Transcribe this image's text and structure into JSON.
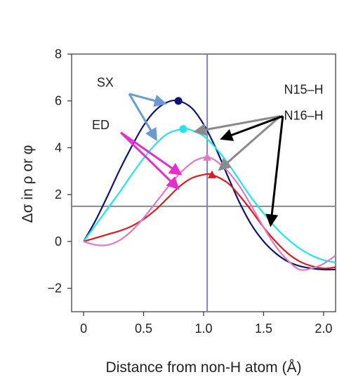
{
  "chart_data": {
    "type": "line",
    "xlabel": "Distance from non-H atom (Å)",
    "ylabel": "Δσ in ρ or φ",
    "xlim": [
      -0.1,
      2.1
    ],
    "ylim": [
      -3,
      8
    ],
    "x_ticks": [
      "0",
      "0.5",
      "1.0",
      "1.5",
      "2.0"
    ],
    "y_ticks": [
      "−2",
      "0",
      "2",
      "4",
      "6",
      "8"
    ],
    "x_tick_values": [
      0,
      0.5,
      1.0,
      1.5,
      2.0
    ],
    "y_tick_values": [
      -2,
      0,
      2,
      4,
      6,
      8
    ],
    "reference_lines": {
      "horizontal_y": 1.5,
      "horizontal_color": "#8a8a8a",
      "vertical_x": 1.03,
      "vertical_color": "#8080c0"
    },
    "series": [
      {
        "color": "#0d1573",
        "marker": "circle",
        "peak": [
          0.79,
          6.0
        ],
        "x": [
          0,
          0.1,
          0.2,
          0.3,
          0.4,
          0.5,
          0.6,
          0.7,
          0.79,
          0.9,
          1.0,
          1.1,
          1.2,
          1.3,
          1.4,
          1.5,
          1.6,
          1.7,
          1.8,
          1.9,
          2.0,
          2.1
        ],
        "y": [
          0,
          0.9,
          1.95,
          3.05,
          4.05,
          4.95,
          5.6,
          5.95,
          6.0,
          5.7,
          5.0,
          4.0,
          2.8,
          1.65,
          0.7,
          0.0,
          -0.5,
          -0.85,
          -1.05,
          -1.15,
          -1.2,
          -1.2
        ]
      },
      {
        "color": "#22e5ea",
        "marker": "circle",
        "peak": [
          0.83,
          4.8
        ],
        "x": [
          0,
          0.1,
          0.2,
          0.3,
          0.4,
          0.5,
          0.6,
          0.7,
          0.83,
          0.9,
          1.0,
          1.1,
          1.2,
          1.3,
          1.4,
          1.5,
          1.6,
          1.7,
          1.8,
          1.9,
          2.0,
          2.1
        ],
        "y": [
          0,
          0.7,
          1.4,
          2.1,
          2.85,
          3.55,
          4.15,
          4.6,
          4.8,
          4.75,
          4.5,
          4.0,
          3.35,
          2.6,
          1.85,
          1.2,
          0.6,
          0.1,
          -0.3,
          -0.6,
          -0.8,
          -0.9
        ]
      },
      {
        "color": "#d71e1e",
        "marker": "triangle",
        "peak": [
          1.07,
          2.85
        ],
        "x": [
          0,
          0.1,
          0.2,
          0.3,
          0.4,
          0.5,
          0.6,
          0.7,
          0.8,
          0.9,
          1.0,
          1.07,
          1.2,
          1.3,
          1.4,
          1.5,
          1.6,
          1.7,
          1.8,
          1.9,
          2.0,
          2.1
        ],
        "y": [
          0,
          0.15,
          0.3,
          0.45,
          0.65,
          0.95,
          1.35,
          1.85,
          2.35,
          2.7,
          2.85,
          2.85,
          2.5,
          1.95,
          1.3,
          0.6,
          0.0,
          -0.5,
          -0.85,
          -1.05,
          -1.15,
          -1.1
        ]
      },
      {
        "color": "#e07ac4",
        "marker": "triangle",
        "peak": [
          1.03,
          3.6
        ],
        "x": [
          0,
          0.1,
          0.2,
          0.3,
          0.4,
          0.5,
          0.6,
          0.7,
          0.8,
          0.9,
          0.95,
          1.03,
          1.1,
          1.2,
          1.3,
          1.4,
          1.5,
          1.6,
          1.7,
          1.8,
          1.9,
          2.0,
          2.1
        ],
        "y": [
          0,
          -0.15,
          -0.15,
          0.05,
          0.45,
          1.0,
          1.65,
          2.3,
          2.9,
          3.35,
          3.5,
          3.6,
          3.45,
          3.0,
          2.35,
          1.5,
          0.6,
          -0.2,
          -0.8,
          -1.2,
          -1.15,
          -0.95,
          -0.6
        ]
      }
    ],
    "annotations": [
      {
        "text": "SX",
        "color": "#6a9bd2",
        "label_at": [
          0.11,
          6.6
        ],
        "arrow_from": [
          0.38,
          6.3
        ],
        "arrows_to": [
          [
            0.67,
            5.9
          ],
          [
            0.6,
            4.4
          ]
        ]
      },
      {
        "text": "ED",
        "color": "#e62ecf",
        "label_at": [
          0.07,
          4.8
        ],
        "arrow_from": [
          0.31,
          4.65
        ],
        "arrows_to": [
          [
            0.8,
            2.9
          ],
          [
            0.78,
            2.3
          ]
        ]
      },
      {
        "text": "N15–H",
        "color": "#8a8a8a",
        "label_at": [
          1.67,
          6.3
        ],
        "arrow_from": [
          1.64,
          5.35
        ],
        "arrows_to": [
          [
            0.94,
            4.7
          ],
          [
            1.14,
            3.1
          ]
        ]
      },
      {
        "text": "N16–H",
        "color": "#000000",
        "label_at": [
          1.67,
          5.2
        ],
        "arrow_from": [
          1.66,
          5.35
        ],
        "arrows_to": [
          [
            1.16,
            4.4
          ],
          [
            1.56,
            0.75
          ]
        ]
      }
    ]
  }
}
